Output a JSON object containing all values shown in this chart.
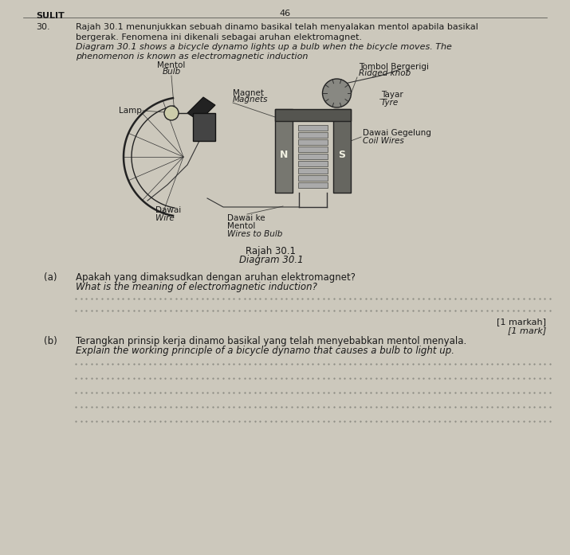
{
  "bg_color": "#ccc8bc",
  "page_color": "#d8d4c6",
  "header_left": "SULIT",
  "header_center": "46",
  "q30_bm1": "Rajah 30.1 menunjukkan sebuah dinamo basikal telah menyalakan mentol apabila basikal",
  "q30_bm2": "bergerak. Fenomena ini dikenali sebagai aruhan elektromagnet.",
  "q30_en1": "Diagram 30.1 shows a bicycle dynamo lights up a bulb when the bicycle moves. The",
  "q30_en2": "phenomenon is known as electromagnetic induction",
  "label_mentol": "Mentol",
  "label_bulb": "Bulb",
  "label_lamp": "Lamp",
  "label_magnet": "Magnet",
  "label_magnets": "Magnets",
  "label_tombol": "Tombol Bergerigi",
  "label_ridged": "Ridged knob",
  "label_tayar": "Tayar",
  "label_tyre": "Tyre",
  "label_dawai_g": "Dawai Gegelung",
  "label_coil": "Coil Wires",
  "label_dawai": "Dawai",
  "label_wire": "Wire",
  "label_dawai_ke": "Dawai ke",
  "label_mentol2": "Mentol",
  "label_w2b": "Wires to Bulb",
  "label_rajah": "Rajah 30.1",
  "label_diagram": "Diagram 30.1",
  "part_a_label": "(a)",
  "part_a_bm": "Apakah yang dimaksudkan dengan aruhan elektromagnet?",
  "part_a_en": "What is the meaning of electromagnetic induction?",
  "mark_bm": "[1 markah]",
  "mark_en": "[1 mark]",
  "part_b_label": "(b)",
  "part_b_bm": "Terangkan prinsip kerja dinamo basikal yang telah menyebabkan mentol menyala.",
  "part_b_en": "Explain the working principle of a bicycle dynamo that causes a bulb to light up.",
  "dot_color": "#888880",
  "text_color": "#1a1a1a",
  "line_color": "#444440"
}
